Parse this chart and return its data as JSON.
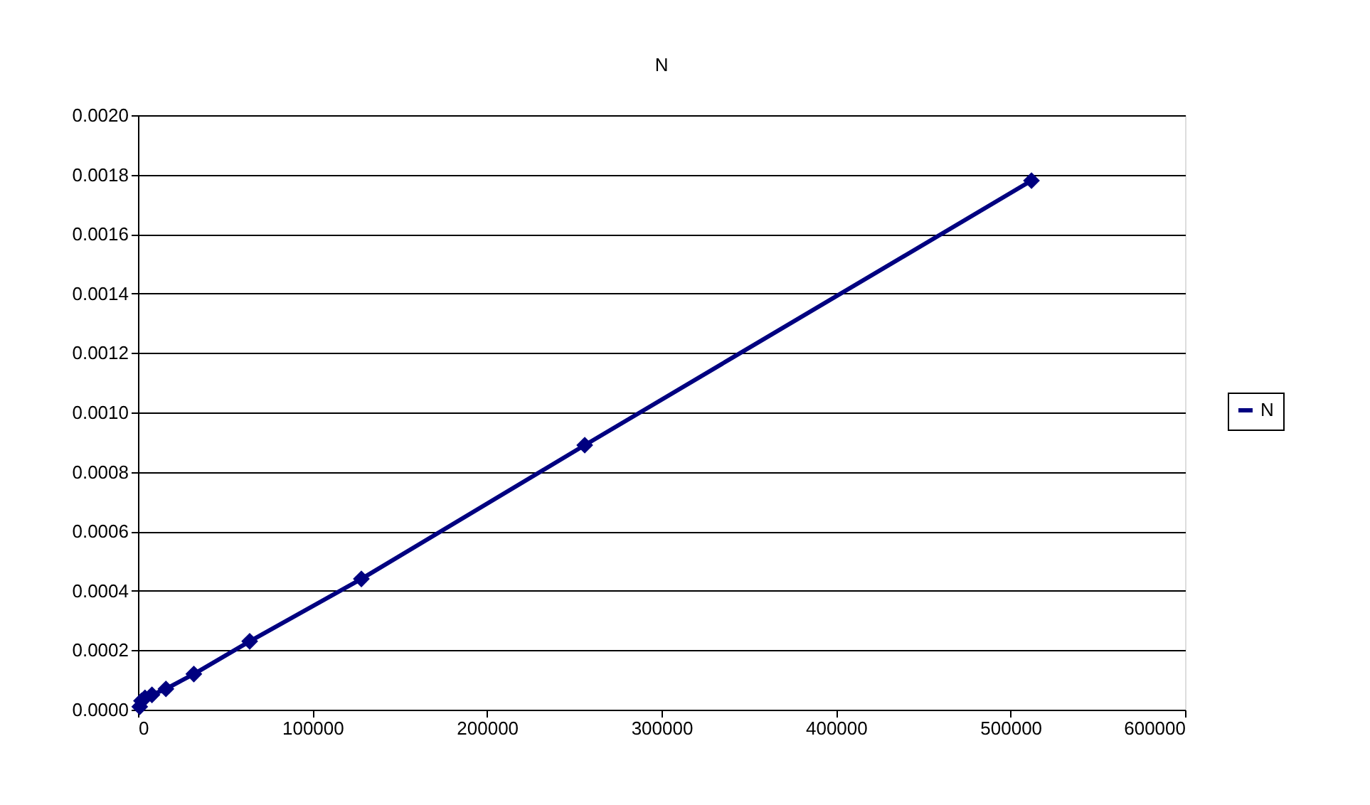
{
  "chart_data": {
    "type": "line",
    "title": "N",
    "x": [
      1000,
      2000,
      4000,
      8000,
      16000,
      32000,
      64000,
      128000,
      256000,
      512000
    ],
    "series": [
      {
        "name": "N",
        "color": "#000080",
        "values": [
          1e-05,
          3e-05,
          4e-05,
          5e-05,
          7e-05,
          0.00012,
          0.00023,
          0.00044,
          0.00089,
          0.00178
        ]
      }
    ],
    "xlim": [
      0,
      600000
    ],
    "xticks": [
      0,
      100000,
      200000,
      300000,
      400000,
      500000,
      600000
    ],
    "ylim": [
      0,
      0.002
    ],
    "yticks": [
      {
        "value": 0,
        "label": "0.0000"
      },
      {
        "value": 0.0002,
        "label": "0.0002"
      },
      {
        "value": 0.0004,
        "label": "0.0004"
      },
      {
        "value": 0.0006,
        "label": "0.0006"
      },
      {
        "value": 0.0008,
        "label": "0.0008"
      },
      {
        "value": 0.001,
        "label": "0.0010"
      },
      {
        "value": 0.0012,
        "label": "0.0012"
      },
      {
        "value": 0.0014,
        "label": "0.0014"
      },
      {
        "value": 0.0016,
        "label": "0.0016"
      },
      {
        "value": 0.0018,
        "label": "0.0018"
      },
      {
        "value": 0.002,
        "label": "0.0020"
      }
    ],
    "grid": "y",
    "legend": "right",
    "marker": "diamond",
    "line_style": "solid"
  }
}
